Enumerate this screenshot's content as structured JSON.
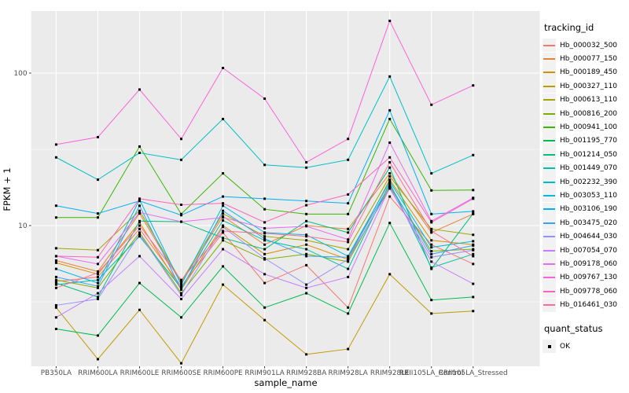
{
  "figure": {
    "background": "#FFFFFF",
    "panel_background": "#EBEBEB",
    "grid_color": "#FFFFFF",
    "tick_color": "#333333",
    "tick_label_color": "#4D4D4D",
    "point_color": "#000000"
  },
  "chart_data": {
    "type": "line",
    "title": "",
    "xlabel": "sample_name",
    "ylabel": "FPKM + 1",
    "y_scale": "log10",
    "y_ticks": [
      10,
      100
    ],
    "y_minor_ticks": [
      3.162,
      31.62
    ],
    "ylim": [
      1.19,
      255
    ],
    "grid": true,
    "legend_position": "right",
    "categories": [
      "PB350LA",
      "RRIM600LA",
      "RRIM600LE",
      "RRIM600SE",
      "RRIM600PE",
      "RRIM901LA",
      "RRIM928BA",
      "RRIM928LA",
      "RRIM928LE",
      "RRII105LA_Control",
      "RRII105LA_Stressed"
    ],
    "series": [
      {
        "name": "Hb_000032_500",
        "color": "#F8766D",
        "values": [
          4.3,
          4.6,
          9.5,
          4.0,
          9.0,
          4.2,
          5.5,
          2.9,
          15.5,
          7.5,
          5.6
        ]
      },
      {
        "name": "Hb_000077_150",
        "color": "#EA8331",
        "values": [
          5.9,
          5.0,
          12.0,
          4.2,
          11.5,
          7.5,
          10.0,
          9.5,
          22,
          9.0,
          11.9
        ]
      },
      {
        "name": "Hb_000189_450",
        "color": "#D89000",
        "values": [
          5.7,
          4.8,
          10.5,
          3.8,
          10.0,
          6.5,
          7.5,
          6.0,
          20,
          8.0,
          7.5
        ]
      },
      {
        "name": "Hb_000327_110",
        "color": "#C09B00",
        "values": [
          2.9,
          1.33,
          2.8,
          1.25,
          4.1,
          2.4,
          1.43,
          1.55,
          4.8,
          2.65,
          2.75
        ]
      },
      {
        "name": "Hb_000613_110",
        "color": "#A3A500",
        "values": [
          7.1,
          6.9,
          12.5,
          4.3,
          12.0,
          8.5,
          8.0,
          7.0,
          21,
          9.5,
          8.7
        ]
      },
      {
        "name": "Hb_000816_200",
        "color": "#7CAE00",
        "values": [
          4.4,
          3.9,
          9.0,
          3.6,
          8.0,
          6.0,
          6.5,
          5.8,
          18,
          6.8,
          7.0
        ]
      },
      {
        "name": "Hb_000941_100",
        "color": "#39B600",
        "values": [
          11.3,
          11.3,
          33,
          11.9,
          22,
          12.8,
          11.9,
          11.9,
          50,
          17,
          17.1
        ]
      },
      {
        "name": "Hb_001195_770",
        "color": "#00BB4E",
        "values": [
          2.1,
          1.9,
          4.2,
          2.5,
          5.4,
          2.9,
          3.6,
          2.65,
          10.4,
          3.25,
          3.4
        ]
      },
      {
        "name": "Hb_001214_050",
        "color": "#00BF7D",
        "values": [
          4.2,
          3.4,
          10.7,
          10.6,
          8.3,
          7.0,
          10.7,
          9.0,
          24,
          5.2,
          12.0
        ]
      },
      {
        "name": "Hb_001449_070",
        "color": "#00C1A3",
        "values": [
          4.1,
          4.4,
          8.5,
          3.9,
          10.8,
          8.0,
          7.0,
          5.2,
          19,
          5.3,
          6.5
        ]
      },
      {
        "name": "Hb_002232_390",
        "color": "#00BFC4",
        "values": [
          28,
          20,
          30,
          27,
          50,
          25,
          24,
          27,
          95,
          22,
          29
        ]
      },
      {
        "name": "Hb_003053_110",
        "color": "#00BAE0",
        "values": [
          5.2,
          4.2,
          14.8,
          4.1,
          13.5,
          9.0,
          8.7,
          6.3,
          19.5,
          7.2,
          7.9
        ]
      },
      {
        "name": "Hb_003106_190",
        "color": "#00B0F6",
        "values": [
          13.5,
          12,
          14.5,
          11.7,
          15.5,
          15,
          14.5,
          14,
          57,
          11.9,
          12.4
        ]
      },
      {
        "name": "Hb_003475_020",
        "color": "#35A2FF",
        "values": [
          4.6,
          4.0,
          13.5,
          3.8,
          12.5,
          8.2,
          6.3,
          6.2,
          18.5,
          6.5,
          7.4
        ]
      },
      {
        "name": "Hb_004644_030",
        "color": "#9590FF",
        "values": [
          3.0,
          3.3,
          8.8,
          3.5,
          9.8,
          6.1,
          4.1,
          6.0,
          17.5,
          6.2,
          6.9
        ]
      },
      {
        "name": "Hb_007054_070",
        "color": "#C77CFF",
        "values": [
          2.5,
          3.6,
          6.3,
          3.3,
          7.0,
          4.8,
          3.9,
          4.6,
          17.8,
          5.8,
          4.15
        ]
      },
      {
        "name": "Hb_009178_060",
        "color": "#E76BF3",
        "values": [
          6.3,
          5.6,
          12.2,
          10.6,
          11.3,
          9.6,
          9.9,
          8.1,
          35,
          10.7,
          15.2
        ]
      },
      {
        "name": "Hb_009767_130",
        "color": "#FA62DB",
        "values": [
          34,
          38,
          78,
          37,
          108,
          68,
          26,
          37,
          220,
          62,
          83
        ]
      },
      {
        "name": "Hb_009778_060",
        "color": "#FF62BC",
        "values": [
          6.3,
          6.2,
          15.0,
          13.7,
          14.0,
          10.5,
          13.6,
          16.0,
          28,
          10.5,
          15.0
        ]
      },
      {
        "name": "Hb_016461_030",
        "color": "#FF6A98",
        "values": [
          3.9,
          4.9,
          10.0,
          4.4,
          9.2,
          8.9,
          8.5,
          7.8,
          26,
          9.2,
          6.3
        ]
      }
    ],
    "legend": {
      "color_title": "tracking_id",
      "shape_title": "quant_status",
      "shape_items": [
        {
          "label": "OK",
          "color": "#000000"
        }
      ]
    }
  }
}
